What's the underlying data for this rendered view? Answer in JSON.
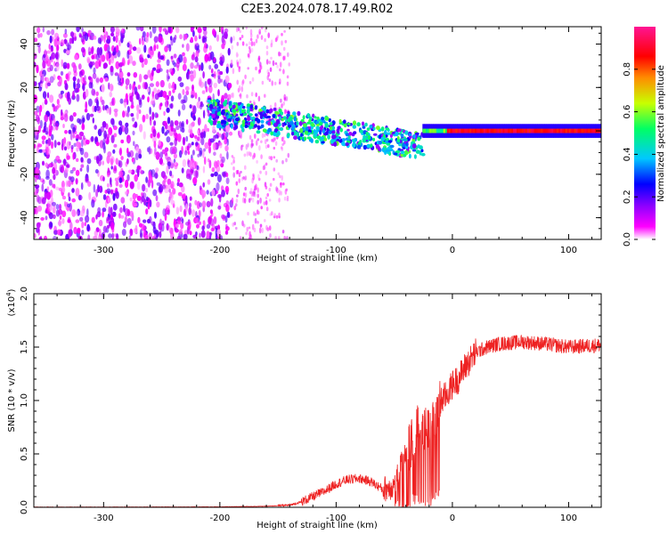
{
  "title": "C2E3.2024.078.17.49.R02",
  "chart_data": [
    {
      "type": "heatmap",
      "title": "",
      "xlabel": "Height of straight line (km)",
      "ylabel": "Frequency (Hz)",
      "xlim": [
        -360,
        128
      ],
      "ylim": [
        -50,
        48
      ],
      "xticks": [
        -300,
        -200,
        -100,
        0,
        100
      ],
      "yticks": [
        -40,
        -20,
        0,
        20,
        40
      ],
      "colorbar": {
        "label": "Normalized spectral amplitude",
        "range": [
          0.0,
          1.0
        ],
        "ticks": [
          0.0,
          0.2,
          0.4,
          0.6,
          0.8
        ],
        "colormap": [
          "#ffffff",
          "#ff00ff",
          "#7a00ff",
          "#0000ff",
          "#00c8ff",
          "#00ff64",
          "#c8ff00",
          "#ff8c00",
          "#ff0000",
          "#ff1493"
        ]
      },
      "regions": [
        {
          "description": "broadband noise",
          "x_range": [
            -360,
            -190
          ],
          "y_range": [
            -50,
            48
          ],
          "amplitude": 0.2
        },
        {
          "description": "fading noise",
          "x_range": [
            -190,
            -140
          ],
          "y_range": [
            -50,
            48
          ],
          "amplitude": 0.05
        },
        {
          "description": "signal band",
          "x_range": [
            -210,
            -25
          ],
          "y_center_start": 9,
          "y_center_end": -7,
          "amplitude": 0.35
        },
        {
          "description": "steady carrier",
          "x_range": [
            -25,
            128
          ],
          "y_center": 0,
          "amplitude": 0.95
        }
      ]
    },
    {
      "type": "line",
      "title": "",
      "xlabel": "Height of straight line (km)",
      "ylabel": "SNR (10 * v/v)",
      "yscale_label": "(x10",
      "yscale_exp": "4",
      "yscale_suffix": ")",
      "xlim": [
        -360,
        128
      ],
      "ylim": [
        0.0,
        2.0
      ],
      "xticks": [
        -300,
        -200,
        -100,
        0,
        100
      ],
      "yticks": [
        0.0,
        0.5,
        1.0,
        1.5,
        2.0
      ],
      "line_color": "#ee2222",
      "series": [
        {
          "x": [
            -360,
            -300,
            -250,
            -200,
            -160,
            -140,
            -130,
            -120,
            -110,
            -100,
            -90,
            -80,
            -70,
            -60,
            -50,
            -45,
            -40,
            -35,
            -30,
            -25,
            -20,
            -15,
            -10,
            -5,
            0,
            5,
            10,
            20,
            30,
            40,
            60,
            80,
            100,
            128
          ],
          "y": [
            0.002,
            0.002,
            0.003,
            0.004,
            0.01,
            0.02,
            0.05,
            0.1,
            0.15,
            0.22,
            0.26,
            0.27,
            0.24,
            0.17,
            0.2,
            0.38,
            0.5,
            0.6,
            0.75,
            0.72,
            0.7,
            0.85,
            1.0,
            1.05,
            1.15,
            1.2,
            1.3,
            1.45,
            1.5,
            1.53,
            1.55,
            1.53,
            1.5,
            1.52
          ]
        }
      ]
    }
  ]
}
